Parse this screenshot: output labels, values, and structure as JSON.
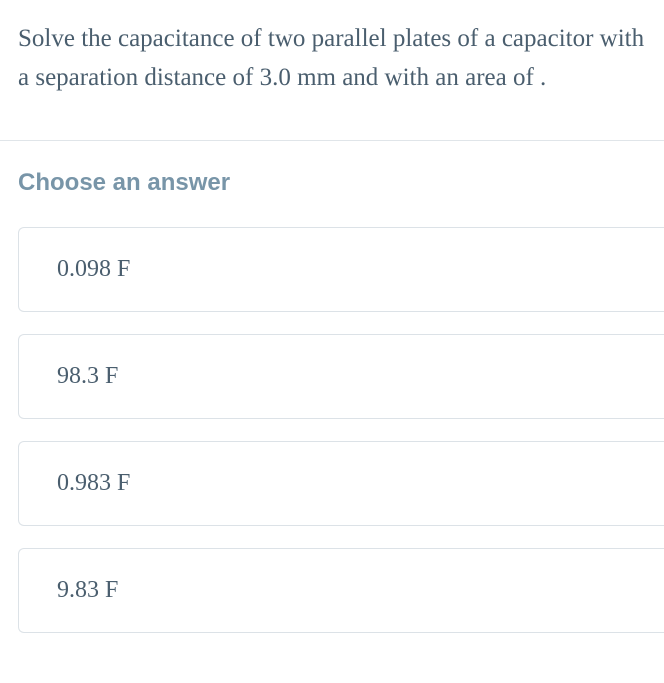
{
  "question": {
    "text": "Solve the capacitance of two parallel plates of a capacitor with a separation distance of 3.0 mm and with an area of  .",
    "text_color": "#4a5e6e",
    "fontsize": 25
  },
  "prompt": {
    "label": "Choose an answer",
    "color": "#7895a8",
    "fontsize": 24
  },
  "answers": [
    {
      "label": "0.098 F"
    },
    {
      "label": "98.3 F"
    },
    {
      "label": "0.983 F"
    },
    {
      "label": "9.83 F"
    }
  ],
  "styling": {
    "background_color": "#ffffff",
    "divider_color": "#e0e5e9",
    "option_border_color": "#dce2e7",
    "option_border_radius": 6,
    "answer_text_color": "#4a5e6e",
    "answer_fontsize": 24
  }
}
